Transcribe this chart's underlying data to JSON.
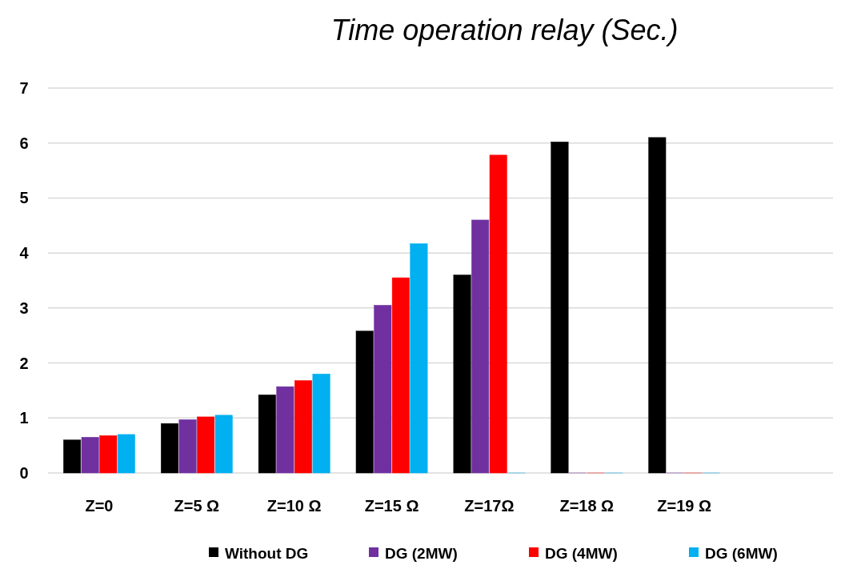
{
  "chart_data": {
    "type": "bar",
    "title": "Time operation relay (Sec.)",
    "categories": [
      "Z=0",
      "Z=5 Ω",
      "Z=10 Ω",
      "Z=15 Ω",
      "Z=17Ω",
      "Z=18 Ω",
      "Z=19 Ω",
      null
    ],
    "series": [
      {
        "name": "Without DG",
        "color": "#000000",
        "values": [
          0.6,
          0.9,
          1.42,
          2.58,
          3.6,
          6.02,
          6.1,
          null
        ]
      },
      {
        "name": "DG (2MW)",
        "color": "#7030a0",
        "values": [
          0.65,
          0.97,
          1.57,
          3.05,
          4.6,
          0,
          0,
          null
        ]
      },
      {
        "name": "DG (4MW)",
        "color": "#ff0000",
        "values": [
          0.68,
          1.02,
          1.68,
          3.55,
          5.78,
          0,
          0,
          null
        ]
      },
      {
        "name": "DG (6MW)",
        "color": "#00b0f0",
        "values": [
          0.7,
          1.05,
          1.8,
          4.17,
          0,
          0,
          0,
          null
        ]
      }
    ],
    "ylim": [
      0,
      7
    ],
    "yticks": [
      0,
      1,
      2,
      3,
      4,
      5,
      6,
      7
    ],
    "grid": "y",
    "legend": "bottom"
  }
}
